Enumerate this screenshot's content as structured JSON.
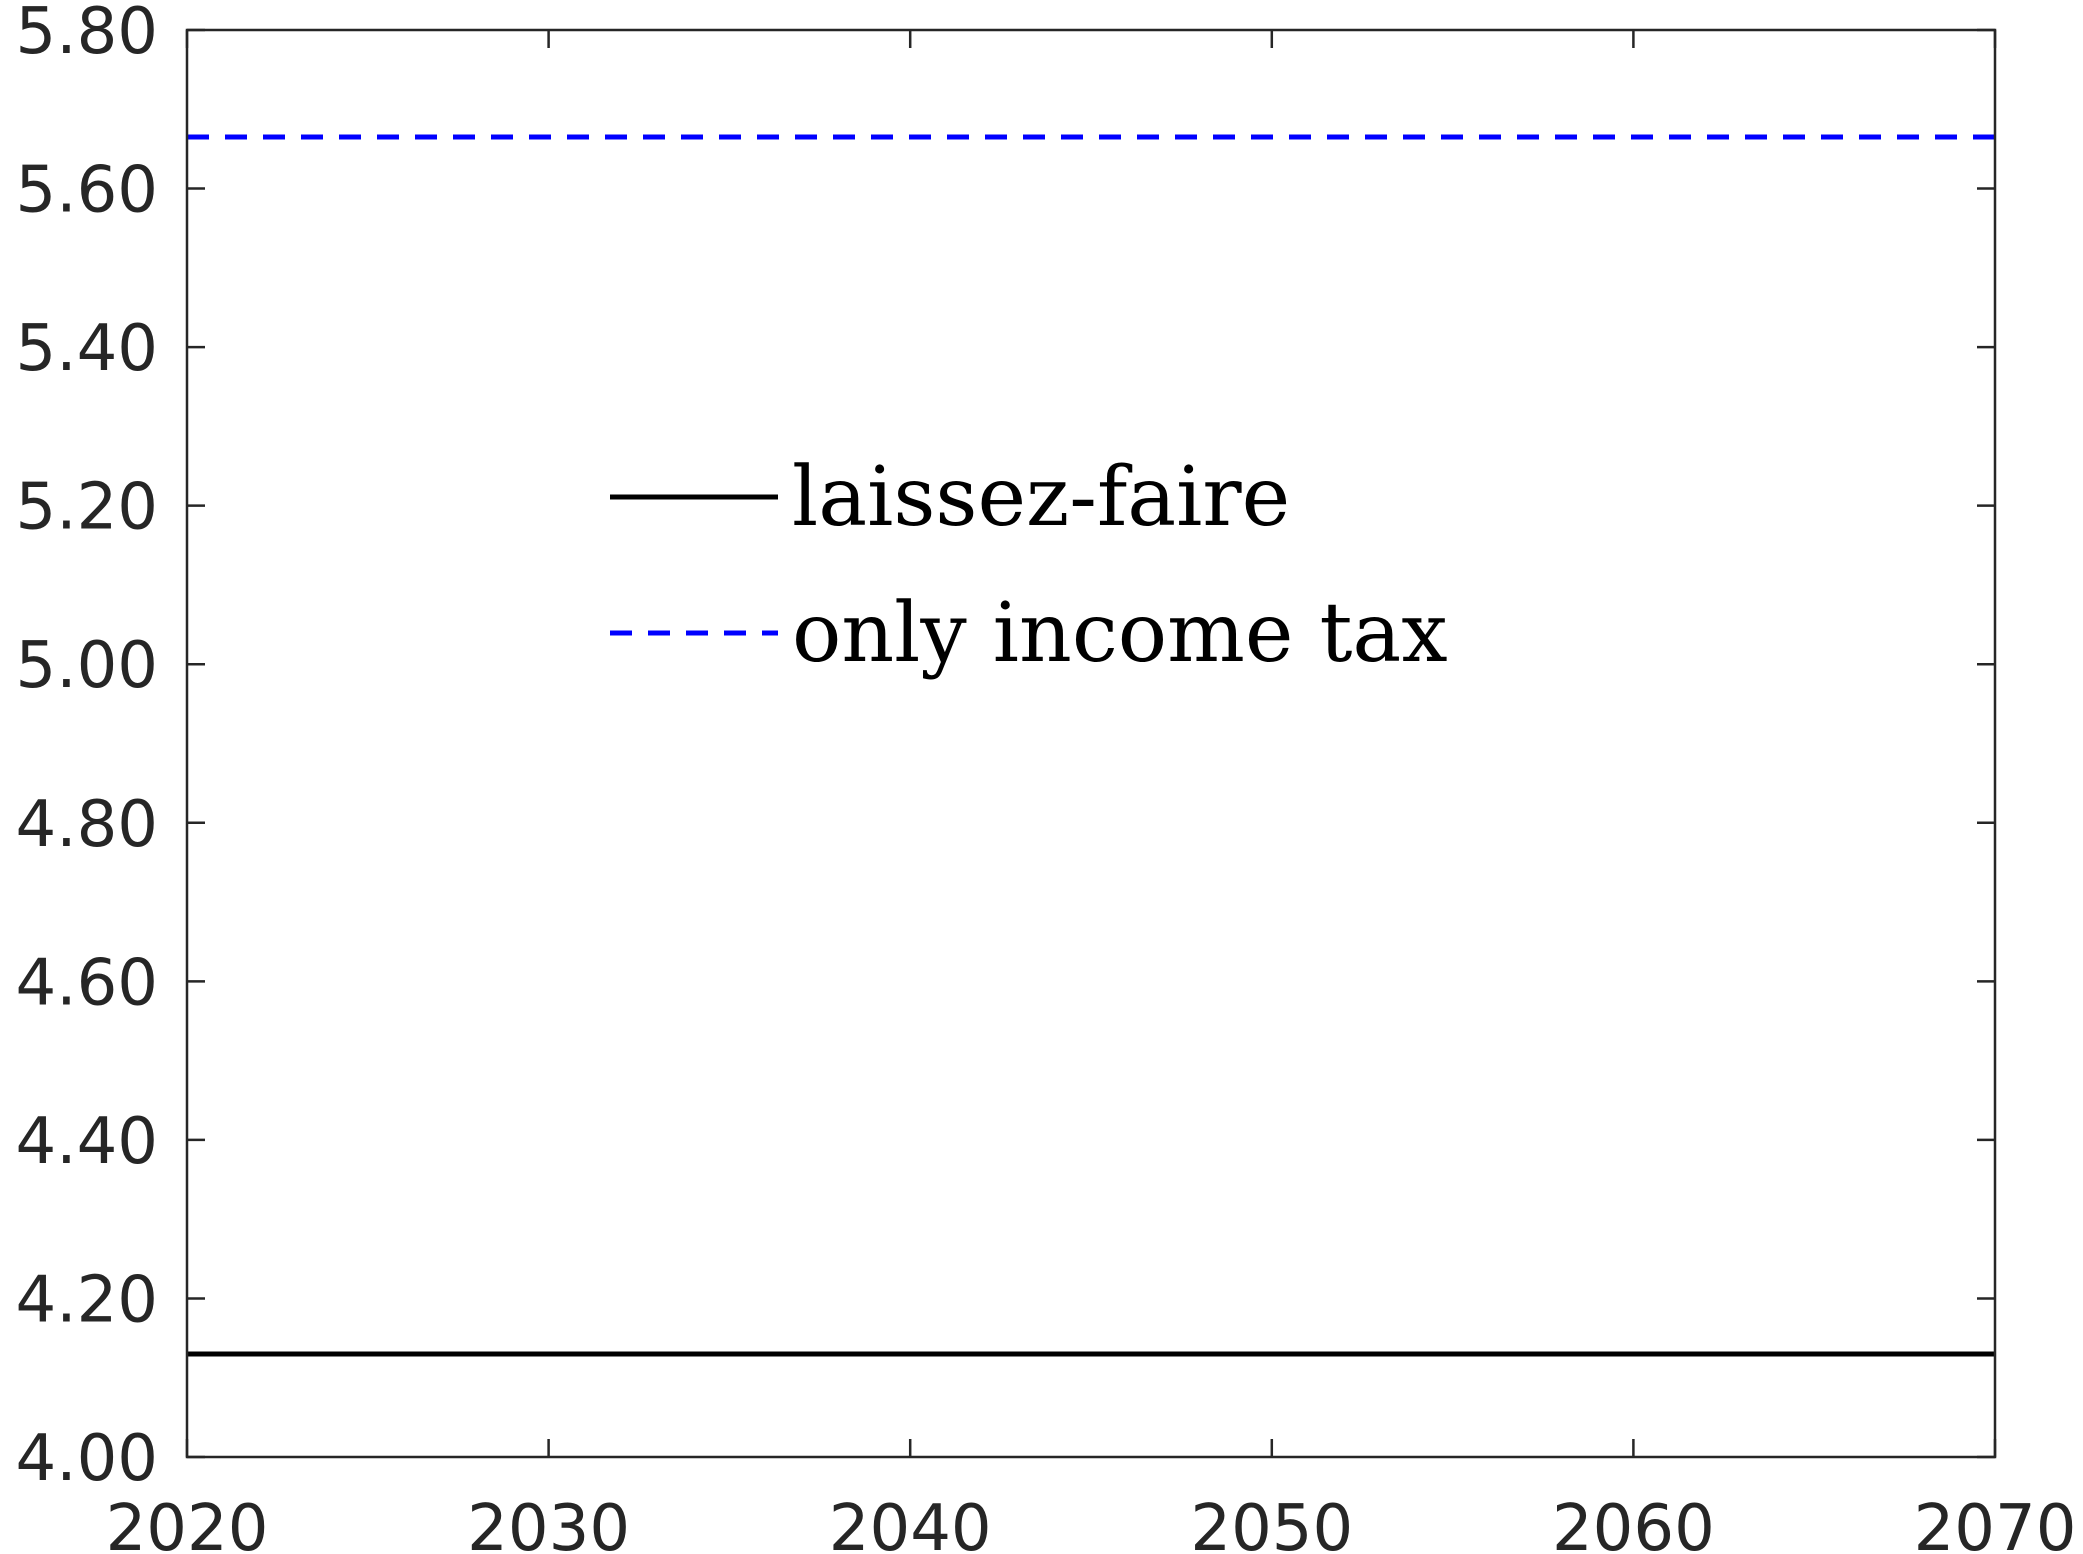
{
  "chart_data": {
    "type": "line",
    "title": "",
    "xlabel": "",
    "ylabel": "",
    "xlim": [
      2020,
      2070
    ],
    "ylim": [
      4.0,
      5.8
    ],
    "x_ticks": [
      2020,
      2030,
      2040,
      2050,
      2060,
      2070
    ],
    "x_tick_labels": [
      "2020",
      "2030",
      "2040",
      "2050",
      "2060",
      "2070"
    ],
    "y_ticks": [
      4.0,
      4.2,
      4.4,
      4.6,
      4.8,
      5.0,
      5.2,
      5.4,
      5.6,
      5.8
    ],
    "y_tick_labels": [
      "4.00",
      "4.20",
      "4.40",
      "4.60",
      "4.80",
      "5.00",
      "5.20",
      "5.40",
      "5.60",
      "5.80"
    ],
    "grid": false,
    "legend_position": "upper-center",
    "series": [
      {
        "name": "laissez-faire",
        "color": "#000000",
        "line_style": "solid",
        "x": [
          2020,
          2070
        ],
        "y": [
          4.13,
          4.13
        ]
      },
      {
        "name": "only income tax",
        "color": "#0000ff",
        "line_style": "dashed",
        "x": [
          2020,
          2070
        ],
        "y": [
          5.665,
          5.665
        ]
      }
    ]
  }
}
